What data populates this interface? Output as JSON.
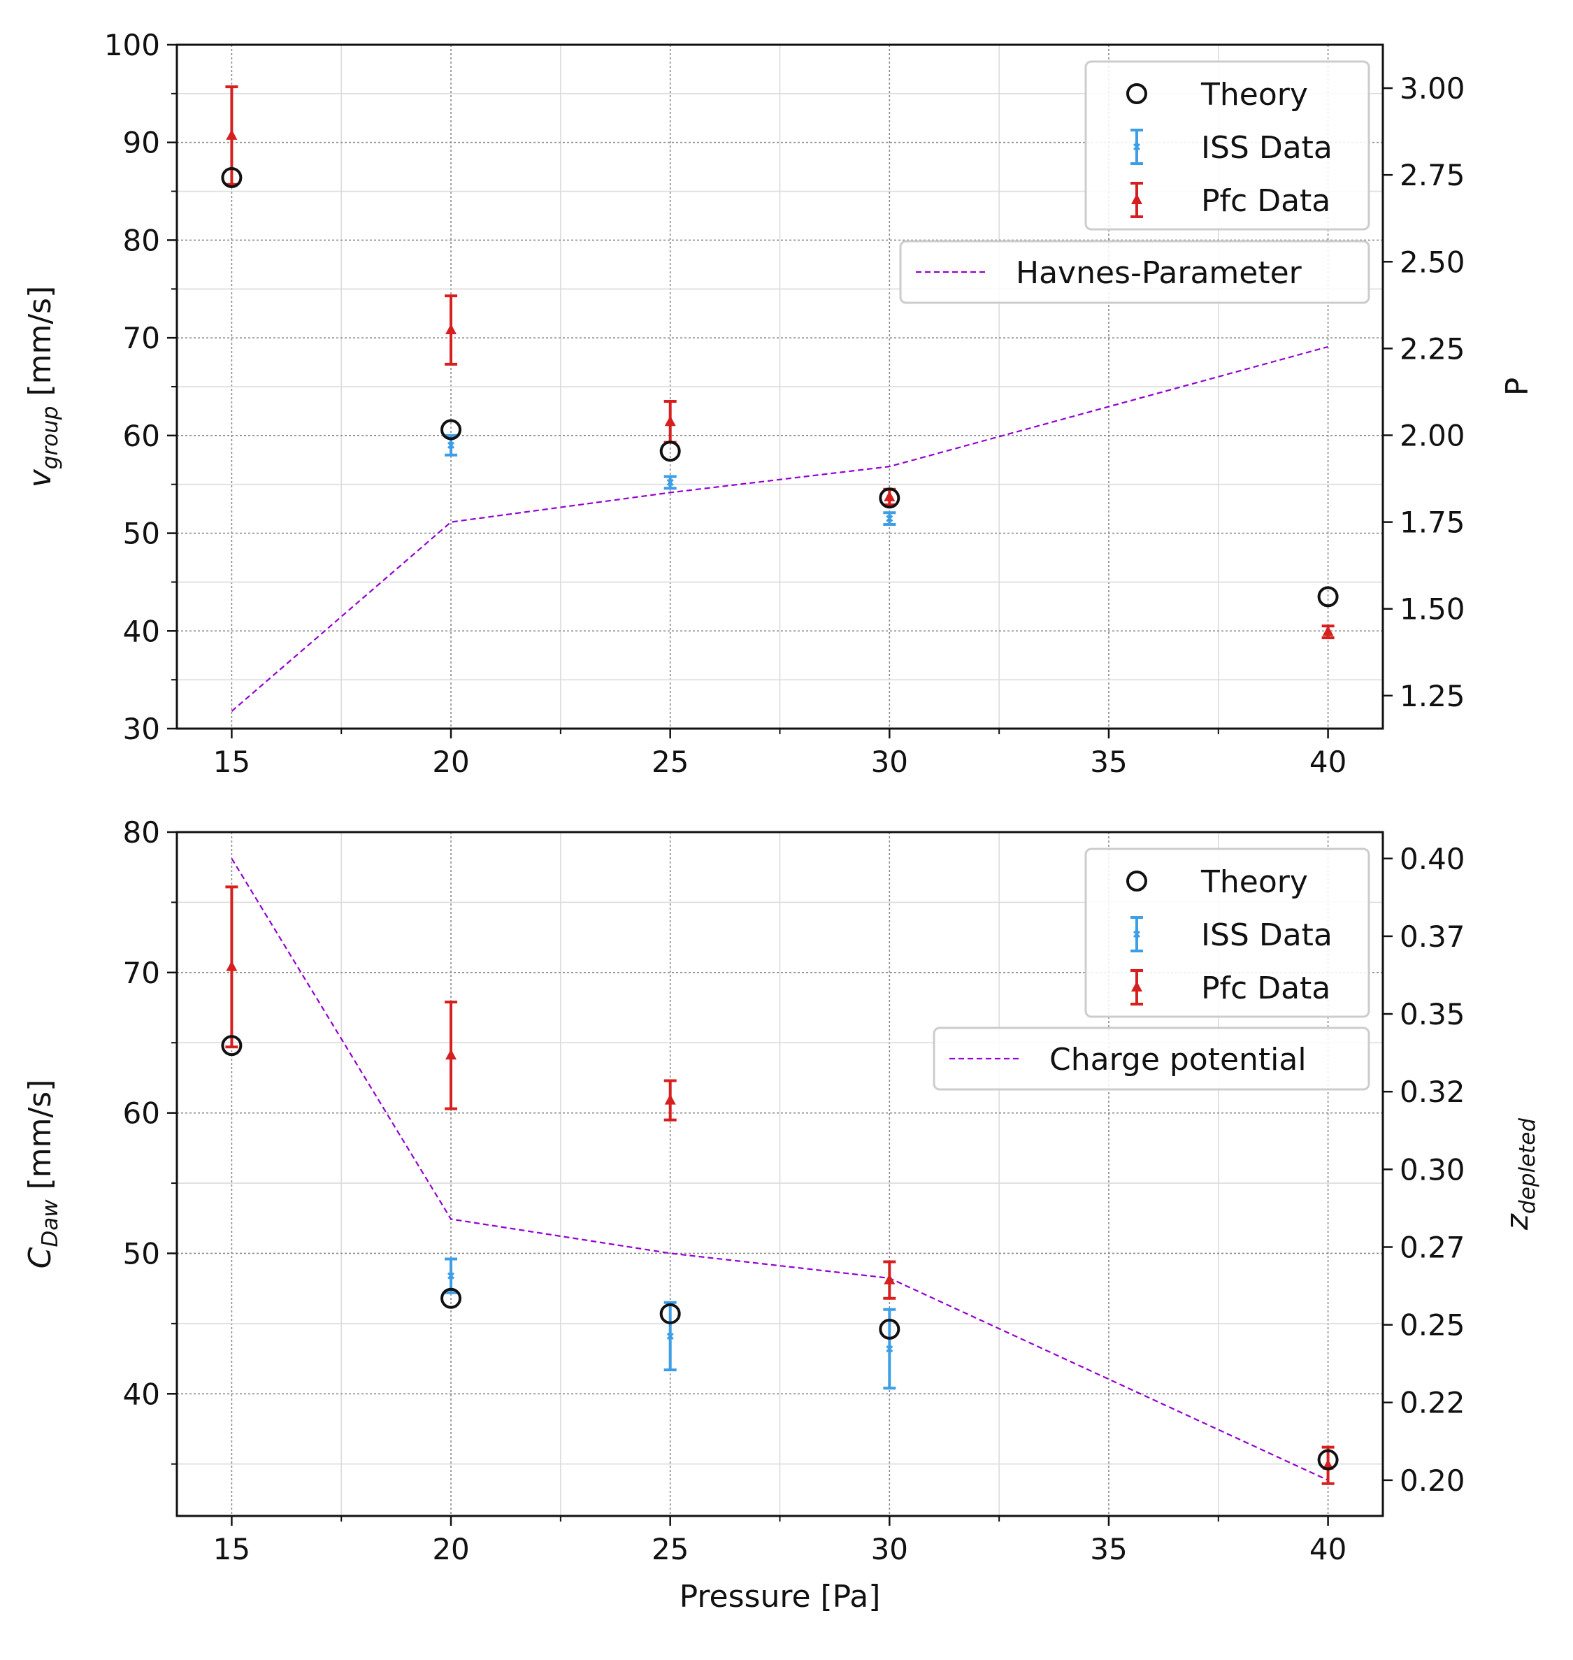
{
  "colors": {
    "theory": "#111111",
    "iss": "#3d9ee6",
    "pfc": "#d62020",
    "line": "#9400d3"
  },
  "chart_data": [
    {
      "type": "scatter",
      "xlabel": "",
      "ylabel": "v_group [mm/s]",
      "ylabel_main": "v",
      "ylabel_sub": "group",
      "ylabel_rest": " [mm/s]",
      "y2label": "P",
      "xlim": [
        13.75,
        41.25
      ],
      "ylim": [
        30,
        100
      ],
      "y2lim": [
        1.155,
        3.125
      ],
      "x_ticks": [
        15,
        20,
        25,
        30,
        35,
        40
      ],
      "y_ticks": [
        30,
        40,
        50,
        60,
        70,
        80,
        90,
        100
      ],
      "y2_ticks": [
        1.25,
        1.5,
        1.75,
        2.0,
        2.25,
        2.5,
        2.75,
        3.0
      ],
      "y2_tick_labels": [
        "1.25",
        "1.50",
        "1.75",
        "2.00",
        "2.25",
        "2.50",
        "2.75",
        "3.00"
      ],
      "grid": true,
      "legend_position": "top-right",
      "series": [
        {
          "name": "Theory",
          "kind": "marker-circle",
          "x": [
            15,
            20,
            25,
            30,
            40
          ],
          "y": [
            86.4,
            60.6,
            58.4,
            53.6,
            43.5
          ]
        },
        {
          "name": "ISS Data",
          "kind": "errorbar-x",
          "x": [
            20,
            25,
            30
          ],
          "y": [
            59.0,
            55.2,
            51.5
          ],
          "yerr": [
            1.0,
            0.6,
            0.6
          ]
        },
        {
          "name": "Pfc Data",
          "kind": "errorbar-triangle",
          "x": [
            15,
            20,
            25,
            30,
            40
          ],
          "y": [
            90.7,
            70.8,
            61.4,
            53.7,
            39.9
          ],
          "yerr": [
            5.0,
            3.5,
            2.1,
            0.8,
            0.6
          ]
        },
        {
          "name": "Havnes-Parameter",
          "kind": "line-dashed",
          "axis": "right",
          "x": [
            15,
            20,
            25,
            30,
            40
          ],
          "y": [
            1.205,
            1.75,
            1.835,
            1.91,
            2.255
          ]
        }
      ]
    },
    {
      "type": "scatter",
      "xlabel": "Pressure [Pa]",
      "ylabel": "C_Daw [mm/s]",
      "ylabel_main": "C",
      "ylabel_sub": "Daw",
      "ylabel_rest": " [mm/s]",
      "y2label": "z_depleted",
      "y2label_main": "z",
      "y2label_sub": "depleted",
      "xlim": [
        13.75,
        41.25
      ],
      "ylim": [
        31.3,
        80
      ],
      "y2lim": [
        0.1885,
        0.4085
      ],
      "x_ticks": [
        15,
        20,
        25,
        30,
        35,
        40
      ],
      "y_ticks": [
        40,
        50,
        60,
        70,
        80
      ],
      "y2_ticks": [
        0.2,
        0.225,
        0.25,
        0.275,
        0.3,
        0.325,
        0.35,
        0.375,
        0.4
      ],
      "y2_tick_labels": [
        "0.20",
        "0.22",
        "0.25",
        "0.27",
        "0.30",
        "0.32",
        "0.35",
        "0.37",
        "0.40"
      ],
      "grid": true,
      "legend_position": "top-right",
      "series": [
        {
          "name": "Theory",
          "kind": "marker-circle",
          "x": [
            15,
            20,
            25,
            30,
            40
          ],
          "y": [
            64.8,
            46.8,
            45.7,
            44.6,
            35.3
          ]
        },
        {
          "name": "ISS Data",
          "kind": "errorbar-x",
          "x": [
            20,
            25,
            30
          ],
          "y": [
            48.4,
            44.1,
            43.2
          ],
          "yerr": [
            1.2,
            2.4,
            2.8
          ]
        },
        {
          "name": "Pfc Data",
          "kind": "errorbar-triangle",
          "x": [
            15,
            20,
            25,
            30,
            40
          ],
          "y": [
            70.4,
            64.1,
            60.9,
            48.1,
            34.9
          ],
          "yerr": [
            5.7,
            3.8,
            1.4,
            1.3,
            1.3
          ]
        },
        {
          "name": "Charge potential",
          "kind": "line-dashed",
          "axis": "right",
          "x": [
            15,
            20,
            25,
            30,
            40
          ],
          "y": [
            0.4,
            0.284,
            0.273,
            0.265,
            0.2
          ]
        }
      ]
    }
  ]
}
